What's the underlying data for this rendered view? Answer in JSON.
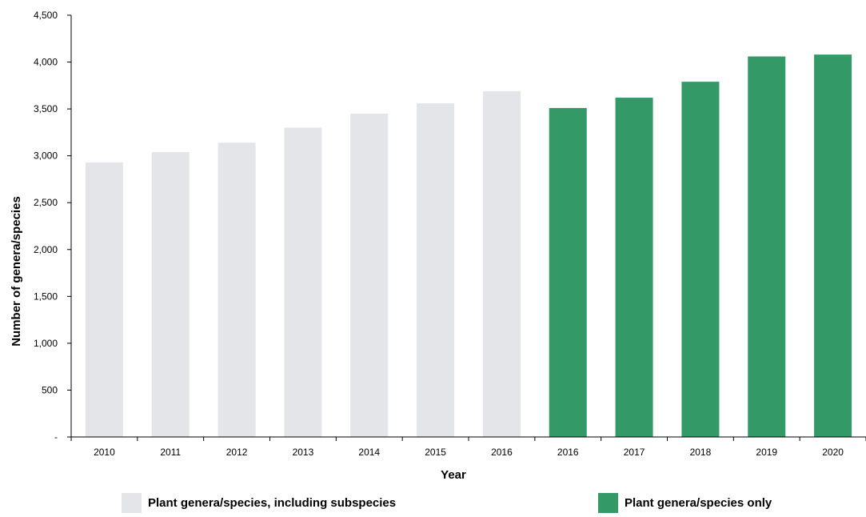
{
  "chart_data": {
    "type": "bar",
    "xlabel": "Year",
    "ylabel": "Number of genera/species",
    "ylim": [
      0,
      4500
    ],
    "yticks": [
      0,
      500,
      1000,
      1500,
      2000,
      2500,
      3000,
      3500,
      4000,
      4500
    ],
    "ytick_labels": [
      "-",
      "500",
      "1,000",
      "1,500",
      "2,000",
      "2,500",
      "3,000",
      "3,500",
      "4,000",
      "4,500"
    ],
    "categories": [
      "2010",
      "2011",
      "2012",
      "2013",
      "2014",
      "2015",
      "2016",
      "2016",
      "2017",
      "2018",
      "2019",
      "2020"
    ],
    "values": [
      2930,
      3040,
      3140,
      3300,
      3450,
      3560,
      3690,
      3510,
      3620,
      3790,
      4060,
      4080
    ],
    "series": [
      {
        "name": "Plant genera/species, including subspecies",
        "color": "#e3e5e8",
        "indices": [
          0,
          1,
          2,
          3,
          4,
          5,
          6
        ]
      },
      {
        "name": "Plant genera/species only",
        "color": "#339966",
        "indices": [
          7,
          8,
          9,
          10,
          11
        ]
      }
    ],
    "grid": false,
    "legend_position": "bottom"
  }
}
